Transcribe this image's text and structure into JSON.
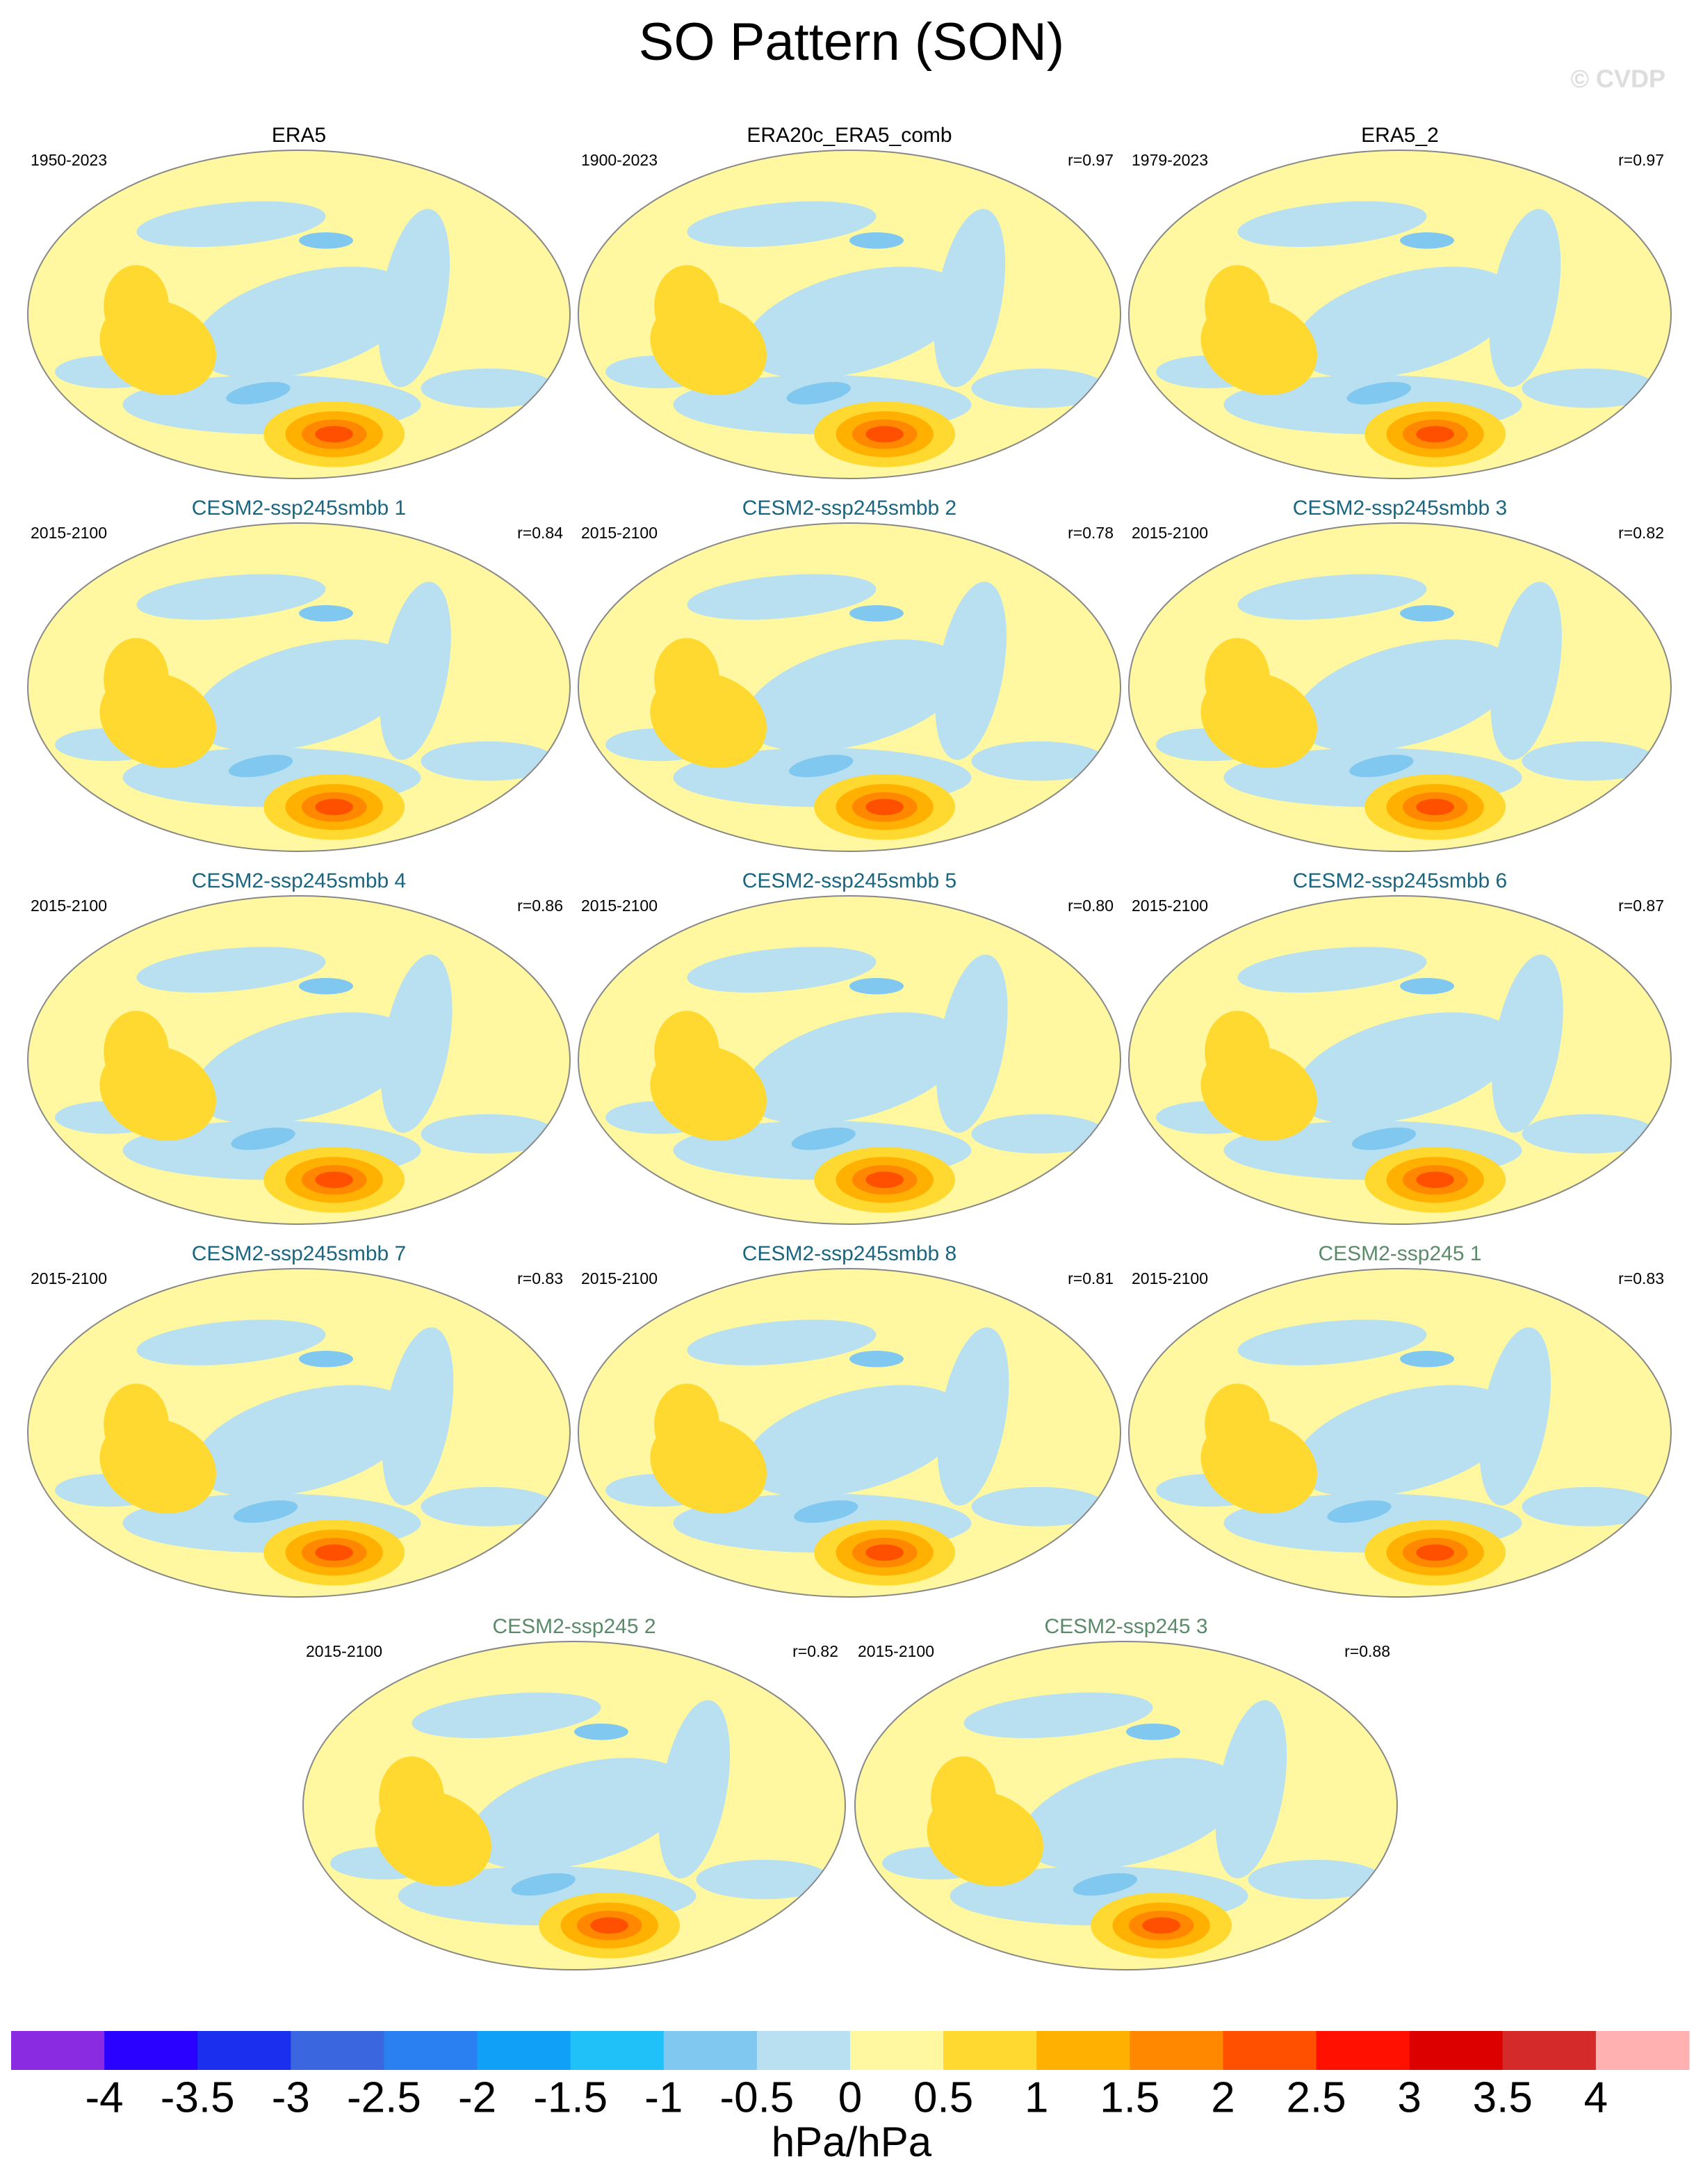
{
  "title": "SO Pattern (SON)",
  "watermark": "© CVDP",
  "panels": [
    {
      "title": "ERA5",
      "title_color": "#000000",
      "period": "1950-2023"
    },
    {
      "title": "ERA20c_ERA5_comb",
      "title_color": "#000000",
      "period": "1900-2023",
      "r": "r=0.97"
    },
    {
      "title": "ERA5_2",
      "title_color": "#000000",
      "period": "1979-2023",
      "r": "r=0.97"
    },
    {
      "title": "CESM2-ssp245smbb 1",
      "title_color": "#1a6680",
      "period": "2015-2100",
      "r": "r=0.84"
    },
    {
      "title": "CESM2-ssp245smbb 2",
      "title_color": "#1a6680",
      "period": "2015-2100",
      "r": "r=0.78"
    },
    {
      "title": "CESM2-ssp245smbb 3",
      "title_color": "#1a6680",
      "period": "2015-2100",
      "r": "r=0.82"
    },
    {
      "title": "CESM2-ssp245smbb 4",
      "title_color": "#1a6680",
      "period": "2015-2100",
      "r": "r=0.86"
    },
    {
      "title": "CESM2-ssp245smbb 5",
      "title_color": "#1a6680",
      "period": "2015-2100",
      "r": "r=0.80"
    },
    {
      "title": "CESM2-ssp245smbb 6",
      "title_color": "#1a6680",
      "period": "2015-2100",
      "r": "r=0.87"
    },
    {
      "title": "CESM2-ssp245smbb 7",
      "title_color": "#1a6680",
      "period": "2015-2100",
      "r": "r=0.83"
    },
    {
      "title": "CESM2-ssp245smbb 8",
      "title_color": "#1a6680",
      "period": "2015-2100",
      "r": "r=0.81"
    },
    {
      "title": "CESM2-ssp245 1",
      "title_color": "#5a8a6a",
      "period": "2015-2100",
      "r": "r=0.83"
    },
    {
      "title": "CESM2-ssp245 2",
      "title_color": "#5a8a6a",
      "period": "2015-2100",
      "r": "r=0.82"
    },
    {
      "title": "CESM2-ssp245 3",
      "title_color": "#5a8a6a",
      "period": "2015-2100",
      "r": "r=0.88"
    }
  ],
  "colorbar": {
    "levels": [
      -4,
      -3.5,
      -3,
      -2.5,
      -2,
      -1.5,
      -1,
      -0.5,
      0,
      0.5,
      1,
      1.5,
      2,
      2.5,
      3,
      3.5,
      4
    ],
    "colors": [
      "#8a2be2",
      "#2a00ff",
      "#1a30ee",
      "#3a66e0",
      "#2a80f0",
      "#10a0f8",
      "#20c0f8",
      "#80c8f0",
      "#b8e0f0",
      "#fff8a0",
      "#ffd830",
      "#ffb000",
      "#ff8800",
      "#ff5000",
      "#ff1000",
      "#dd0000",
      "#d42a2a",
      "#ffb0b0"
    ],
    "label": "hPa/hPa"
  }
}
